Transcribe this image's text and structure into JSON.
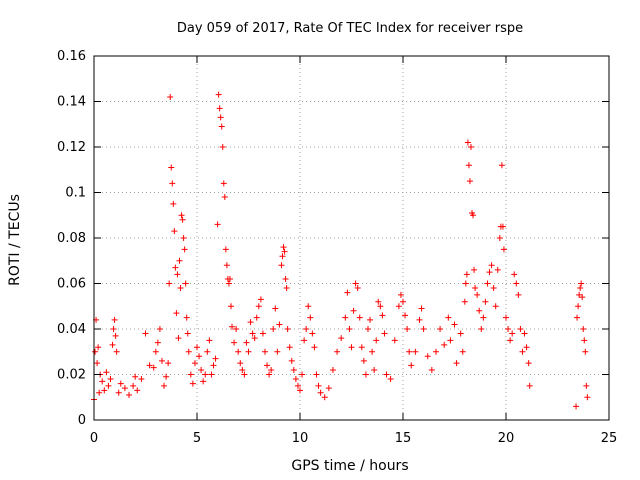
{
  "chart_data": {
    "type": "scatter",
    "title": "Day 059 of 2017, Rate Of TEC Index for receiver rspe",
    "xlabel": "GPS time / hours",
    "ylabel": "ROTI / TECUs",
    "xlim": [
      0,
      25
    ],
    "ylim": [
      0,
      0.16
    ],
    "xticks": [
      0,
      5,
      10,
      15,
      20,
      25
    ],
    "xtick_labels": [
      "0",
      "5",
      "10",
      "15",
      "20",
      "25"
    ],
    "yticks": [
      0,
      0.02,
      0.04,
      0.06,
      0.08,
      0.1,
      0.12,
      0.14,
      0.16
    ],
    "ytick_labels": [
      "0",
      "0.02",
      "0.04",
      "0.06",
      "0.08",
      "0.1",
      "0.12",
      "0.14",
      "0.16"
    ],
    "grid": true,
    "marker": "+",
    "color": "#ff0000",
    "series": [
      {
        "name": "ROTI",
        "points": [
          [
            0.0,
            0.009
          ],
          [
            0.05,
            0.03
          ],
          [
            0.1,
            0.044
          ],
          [
            0.15,
            0.025
          ],
          [
            0.2,
            0.032
          ],
          [
            0.25,
            0.012
          ],
          [
            0.3,
            0.02
          ],
          [
            0.4,
            0.017
          ],
          [
            0.5,
            0.013
          ],
          [
            0.6,
            0.021
          ],
          [
            0.7,
            0.015
          ],
          [
            0.8,
            0.018
          ],
          [
            0.9,
            0.033
          ],
          [
            0.95,
            0.04
          ],
          [
            1.0,
            0.044
          ],
          [
            1.05,
            0.037
          ],
          [
            1.1,
            0.03
          ],
          [
            1.2,
            0.012
          ],
          [
            1.3,
            0.016
          ],
          [
            1.5,
            0.014
          ],
          [
            1.7,
            0.011
          ],
          [
            1.9,
            0.015
          ],
          [
            2.0,
            0.019
          ],
          [
            2.1,
            0.013
          ],
          [
            2.3,
            0.018
          ],
          [
            2.5,
            0.038
          ],
          [
            2.7,
            0.024
          ],
          [
            2.9,
            0.023
          ],
          [
            3.0,
            0.03
          ],
          [
            3.1,
            0.034
          ],
          [
            3.2,
            0.04
          ],
          [
            3.3,
            0.026
          ],
          [
            3.4,
            0.015
          ],
          [
            3.5,
            0.019
          ],
          [
            3.6,
            0.025
          ],
          [
            3.65,
            0.06
          ],
          [
            3.7,
            0.142
          ],
          [
            3.75,
            0.111
          ],
          [
            3.8,
            0.104
          ],
          [
            3.85,
            0.095
          ],
          [
            3.9,
            0.083
          ],
          [
            3.95,
            0.067
          ],
          [
            4.0,
            0.047
          ],
          [
            4.05,
            0.064
          ],
          [
            4.1,
            0.036
          ],
          [
            4.15,
            0.07
          ],
          [
            4.2,
            0.058
          ],
          [
            4.25,
            0.09
          ],
          [
            4.3,
            0.088
          ],
          [
            4.35,
            0.08
          ],
          [
            4.4,
            0.075
          ],
          [
            4.45,
            0.06
          ],
          [
            4.5,
            0.045
          ],
          [
            4.55,
            0.038
          ],
          [
            4.6,
            0.03
          ],
          [
            4.7,
            0.02
          ],
          [
            4.8,
            0.016
          ],
          [
            4.9,
            0.025
          ],
          [
            5.0,
            0.032
          ],
          [
            5.1,
            0.028
          ],
          [
            5.2,
            0.022
          ],
          [
            5.3,
            0.017
          ],
          [
            5.4,
            0.02
          ],
          [
            5.5,
            0.03
          ],
          [
            5.6,
            0.035
          ],
          [
            5.7,
            0.02
          ],
          [
            5.8,
            0.024
          ],
          [
            5.9,
            0.027
          ],
          [
            6.0,
            0.086
          ],
          [
            6.05,
            0.143
          ],
          [
            6.1,
            0.137
          ],
          [
            6.15,
            0.133
          ],
          [
            6.2,
            0.129
          ],
          [
            6.25,
            0.12
          ],
          [
            6.3,
            0.104
          ],
          [
            6.35,
            0.098
          ],
          [
            6.4,
            0.075
          ],
          [
            6.45,
            0.068
          ],
          [
            6.5,
            0.062
          ],
          [
            6.55,
            0.06
          ],
          [
            6.6,
            0.062
          ],
          [
            6.65,
            0.05
          ],
          [
            6.7,
            0.041
          ],
          [
            6.8,
            0.034
          ],
          [
            6.9,
            0.04
          ],
          [
            7.0,
            0.03
          ],
          [
            7.1,
            0.025
          ],
          [
            7.2,
            0.022
          ],
          [
            7.3,
            0.02
          ],
          [
            7.4,
            0.034
          ],
          [
            7.5,
            0.03
          ],
          [
            7.6,
            0.043
          ],
          [
            7.7,
            0.038
          ],
          [
            7.8,
            0.036
          ],
          [
            7.9,
            0.045
          ],
          [
            8.0,
            0.05
          ],
          [
            8.1,
            0.053
          ],
          [
            8.2,
            0.038
          ],
          [
            8.3,
            0.03
          ],
          [
            8.4,
            0.024
          ],
          [
            8.5,
            0.02
          ],
          [
            8.6,
            0.022
          ],
          [
            8.7,
            0.04
          ],
          [
            8.8,
            0.049
          ],
          [
            8.9,
            0.03
          ],
          [
            9.0,
            0.042
          ],
          [
            9.1,
            0.068
          ],
          [
            9.15,
            0.072
          ],
          [
            9.2,
            0.076
          ],
          [
            9.25,
            0.074
          ],
          [
            9.3,
            0.062
          ],
          [
            9.35,
            0.058
          ],
          [
            9.4,
            0.04
          ],
          [
            9.5,
            0.032
          ],
          [
            9.6,
            0.026
          ],
          [
            9.7,
            0.022
          ],
          [
            9.8,
            0.018
          ],
          [
            9.9,
            0.015
          ],
          [
            10.0,
            0.013
          ],
          [
            10.1,
            0.02
          ],
          [
            10.2,
            0.035
          ],
          [
            10.3,
            0.04
          ],
          [
            10.4,
            0.05
          ],
          [
            10.5,
            0.045
          ],
          [
            10.6,
            0.038
          ],
          [
            10.7,
            0.032
          ],
          [
            10.8,
            0.02
          ],
          [
            10.9,
            0.015
          ],
          [
            11.0,
            0.012
          ],
          [
            11.2,
            0.01
          ],
          [
            11.4,
            0.014
          ],
          [
            11.6,
            0.022
          ],
          [
            11.8,
            0.03
          ],
          [
            12.0,
            0.036
          ],
          [
            12.2,
            0.045
          ],
          [
            12.3,
            0.056
          ],
          [
            12.4,
            0.04
          ],
          [
            12.5,
            0.032
          ],
          [
            12.6,
            0.048
          ],
          [
            12.7,
            0.06
          ],
          [
            12.8,
            0.058
          ],
          [
            12.9,
            0.045
          ],
          [
            13.0,
            0.032
          ],
          [
            13.1,
            0.026
          ],
          [
            13.2,
            0.02
          ],
          [
            13.3,
            0.04
          ],
          [
            13.4,
            0.044
          ],
          [
            13.5,
            0.03
          ],
          [
            13.6,
            0.022
          ],
          [
            13.7,
            0.035
          ],
          [
            13.8,
            0.052
          ],
          [
            13.9,
            0.05
          ],
          [
            14.0,
            0.046
          ],
          [
            14.1,
            0.038
          ],
          [
            14.2,
            0.02
          ],
          [
            14.4,
            0.018
          ],
          [
            14.6,
            0.035
          ],
          [
            14.8,
            0.05
          ],
          [
            14.9,
            0.055
          ],
          [
            15.0,
            0.052
          ],
          [
            15.1,
            0.046
          ],
          [
            15.2,
            0.04
          ],
          [
            15.3,
            0.03
          ],
          [
            15.4,
            0.024
          ],
          [
            15.6,
            0.03
          ],
          [
            15.8,
            0.044
          ],
          [
            15.9,
            0.049
          ],
          [
            16.0,
            0.04
          ],
          [
            16.2,
            0.028
          ],
          [
            16.4,
            0.022
          ],
          [
            16.6,
            0.03
          ],
          [
            16.8,
            0.04
          ],
          [
            17.0,
            0.033
          ],
          [
            17.2,
            0.045
          ],
          [
            17.3,
            0.035
          ],
          [
            17.5,
            0.042
          ],
          [
            17.6,
            0.025
          ],
          [
            17.8,
            0.038
          ],
          [
            17.9,
            0.03
          ],
          [
            18.0,
            0.052
          ],
          [
            18.05,
            0.06
          ],
          [
            18.1,
            0.064
          ],
          [
            18.15,
            0.122
          ],
          [
            18.2,
            0.112
          ],
          [
            18.25,
            0.105
          ],
          [
            18.3,
            0.12
          ],
          [
            18.35,
            0.091
          ],
          [
            18.4,
            0.09
          ],
          [
            18.45,
            0.066
          ],
          [
            18.5,
            0.058
          ],
          [
            18.6,
            0.055
          ],
          [
            18.7,
            0.048
          ],
          [
            18.8,
            0.04
          ],
          [
            18.9,
            0.045
          ],
          [
            19.0,
            0.052
          ],
          [
            19.1,
            0.06
          ],
          [
            19.2,
            0.065
          ],
          [
            19.3,
            0.068
          ],
          [
            19.4,
            0.058
          ],
          [
            19.5,
            0.05
          ],
          [
            19.6,
            0.066
          ],
          [
            19.7,
            0.08
          ],
          [
            19.75,
            0.085
          ],
          [
            19.8,
            0.112
          ],
          [
            19.85,
            0.085
          ],
          [
            19.9,
            0.075
          ],
          [
            20.0,
            0.045
          ],
          [
            20.1,
            0.04
          ],
          [
            20.2,
            0.035
          ],
          [
            20.3,
            0.038
          ],
          [
            20.4,
            0.064
          ],
          [
            20.5,
            0.06
          ],
          [
            20.6,
            0.055
          ],
          [
            20.7,
            0.04
          ],
          [
            20.8,
            0.03
          ],
          [
            20.9,
            0.038
          ],
          [
            21.0,
            0.032
          ],
          [
            21.1,
            0.025
          ],
          [
            21.15,
            0.015
          ],
          [
            23.4,
            0.006
          ],
          [
            23.45,
            0.045
          ],
          [
            23.5,
            0.05
          ],
          [
            23.55,
            0.055
          ],
          [
            23.6,
            0.058
          ],
          [
            23.65,
            0.06
          ],
          [
            23.7,
            0.054
          ],
          [
            23.75,
            0.04
          ],
          [
            23.8,
            0.035
          ],
          [
            23.85,
            0.03
          ],
          [
            23.9,
            0.015
          ],
          [
            23.95,
            0.01
          ]
        ]
      }
    ]
  }
}
